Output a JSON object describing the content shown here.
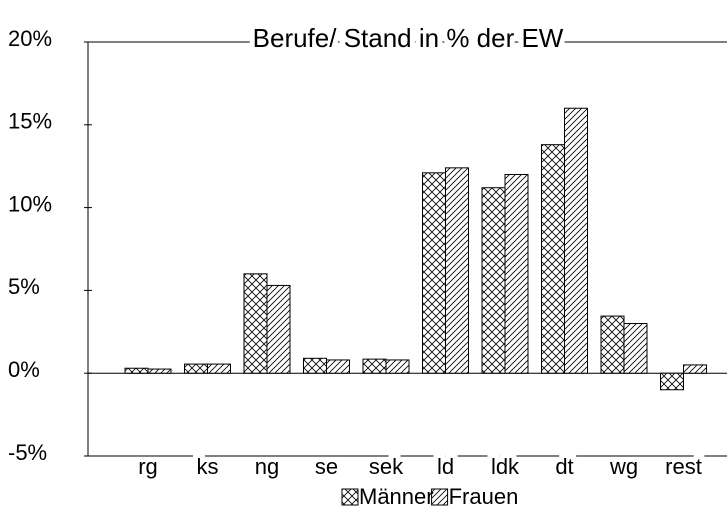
{
  "chart_data": {
    "type": "bar",
    "title": "Berufe/ Stand in % der EW",
    "categories": [
      "rg",
      "ks",
      "ng",
      "se",
      "sek",
      "ld",
      "ldk",
      "dt",
      "wg",
      "rest"
    ],
    "series": [
      {
        "name": "Männer",
        "color": "#000000",
        "pattern": "crosshatch",
        "values": [
          0.3,
          0.55,
          6.0,
          0.9,
          0.85,
          12.1,
          11.2,
          13.8,
          3.45,
          -1.0
        ]
      },
      {
        "name": "Frauen",
        "color": "#000000",
        "pattern": "diagonal",
        "values": [
          0.25,
          0.55,
          5.3,
          0.8,
          0.8,
          12.4,
          12.0,
          16.0,
          3.0,
          0.5
        ]
      }
    ],
    "ylim": [
      -5,
      20
    ],
    "yticks": [
      {
        "value": -5,
        "label": "-5%"
      },
      {
        "value": 0,
        "label": "0%"
      },
      {
        "value": 5,
        "label": "5%"
      },
      {
        "value": 10,
        "label": "10%"
      },
      {
        "value": 15,
        "label": "15%"
      },
      {
        "value": 20,
        "label": "20%"
      }
    ],
    "grid": false
  }
}
